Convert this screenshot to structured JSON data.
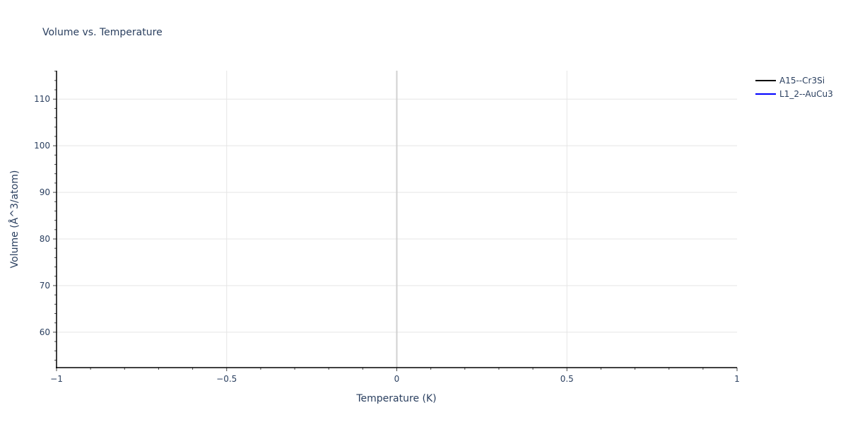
{
  "chart_data": {
    "type": "line",
    "title": "Volume vs. Temperature",
    "xlabel": "Temperature (K)",
    "ylabel": "Volume (Å^3/atom)",
    "xlim": [
      -1,
      1
    ],
    "ylim": [
      52.4,
      116.1
    ],
    "x_ticks": [
      -1,
      -0.5,
      0,
      0.5,
      1
    ],
    "x_tick_labels": [
      "−1",
      "−0.5",
      "0",
      "0.5",
      "1"
    ],
    "y_ticks": [
      60,
      70,
      80,
      90,
      100,
      110
    ],
    "y_tick_labels": [
      "60",
      "70",
      "80",
      "90",
      "100",
      "110"
    ],
    "grid": true,
    "legend_position": "top-right",
    "series": [
      {
        "name": "A15--Cr3Si",
        "color": "#000000",
        "x": [],
        "y": []
      },
      {
        "name": "L1_2--AuCu3",
        "color": "#0000ff",
        "x": [],
        "y": []
      }
    ]
  }
}
